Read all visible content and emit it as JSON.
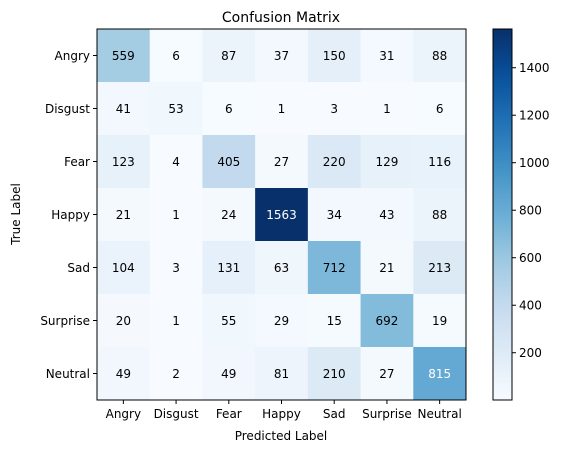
{
  "chart_data": {
    "type": "heatmap",
    "title": "Confusion Matrix",
    "xlabel": "Predicted Label",
    "ylabel": "True Label",
    "x_categories": [
      "Angry",
      "Disgust",
      "Fear",
      "Happy",
      "Sad",
      "Surprise",
      "Neutral"
    ],
    "y_categories": [
      "Angry",
      "Disgust",
      "Fear",
      "Happy",
      "Sad",
      "Surprise",
      "Neutral"
    ],
    "values": [
      [
        559,
        6,
        87,
        37,
        150,
        31,
        88
      ],
      [
        41,
        53,
        6,
        1,
        3,
        1,
        6
      ],
      [
        123,
        4,
        405,
        27,
        220,
        129,
        116
      ],
      [
        21,
        1,
        24,
        1563,
        34,
        43,
        88
      ],
      [
        104,
        3,
        131,
        63,
        712,
        21,
        213
      ],
      [
        20,
        1,
        55,
        29,
        15,
        692,
        19
      ],
      [
        49,
        2,
        49,
        81,
        210,
        27,
        815
      ]
    ],
    "colormap": "Blues",
    "colorbar": {
      "min": 1,
      "max": 1563,
      "ticks": [
        200,
        400,
        600,
        800,
        1000,
        1200,
        1400
      ]
    }
  }
}
